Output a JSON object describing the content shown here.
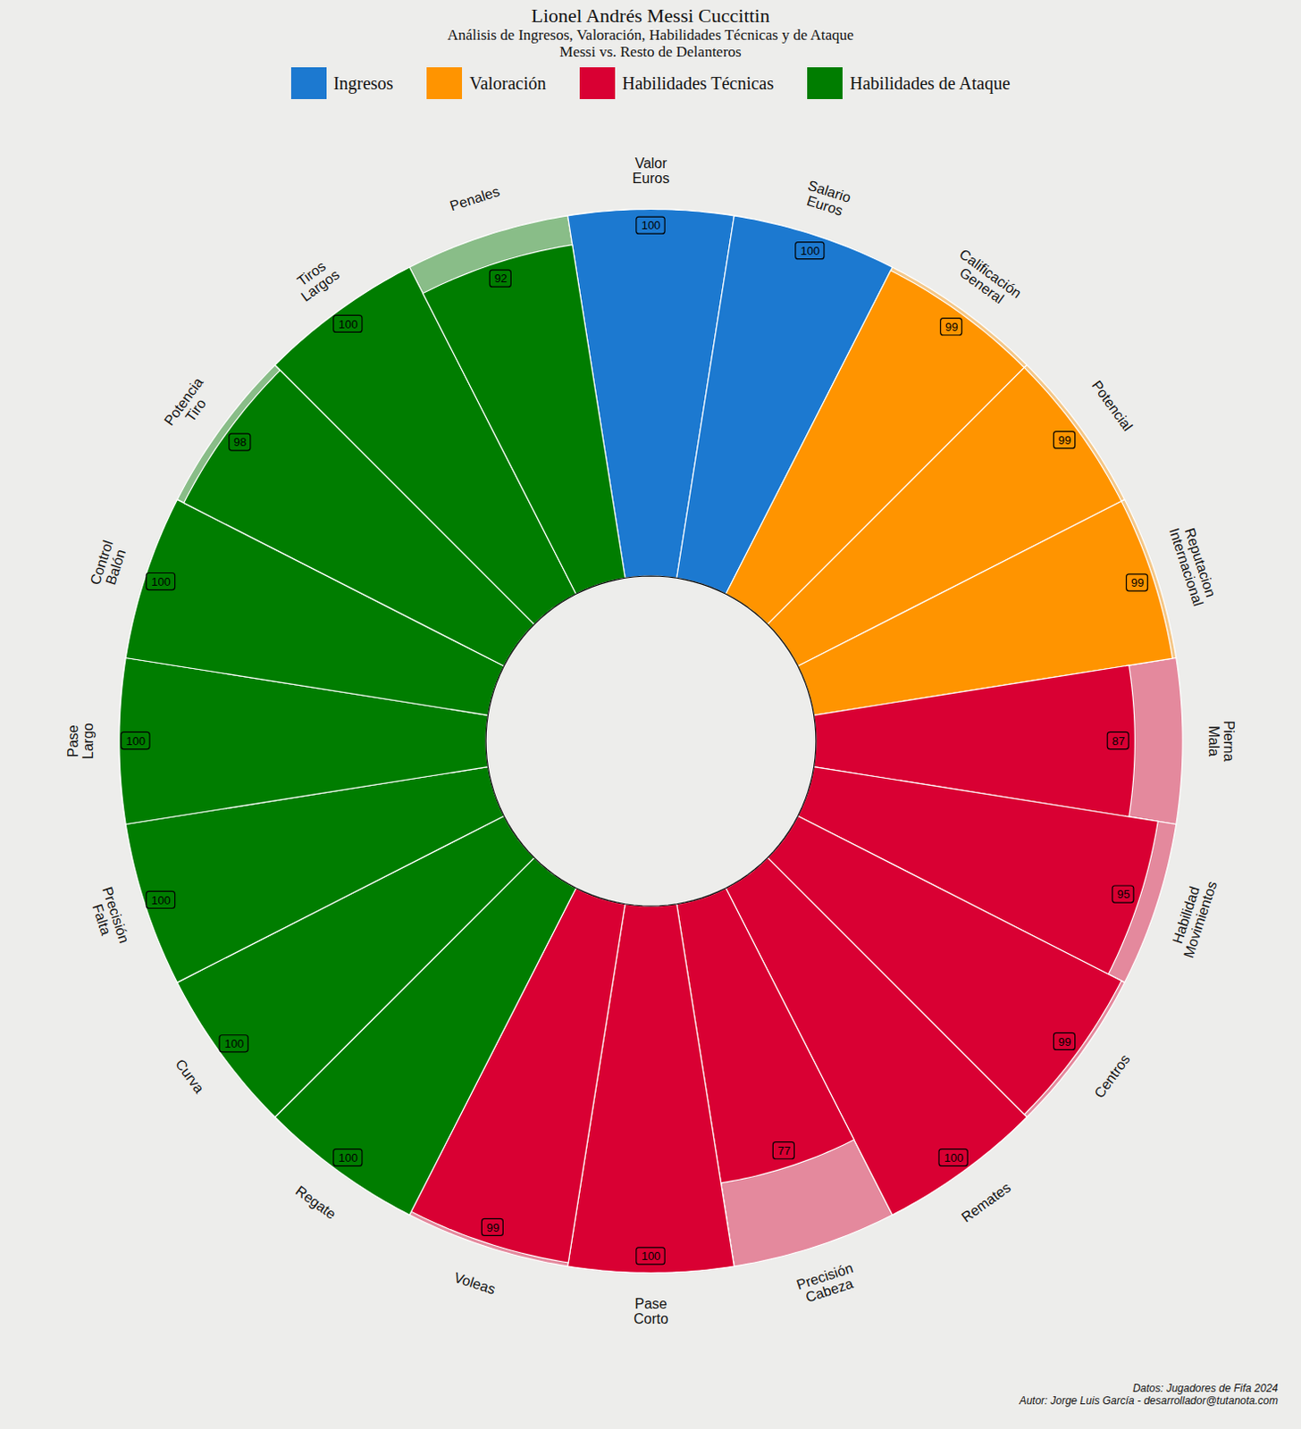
{
  "chart_data": {
    "type": "radial_bar",
    "title": "Lionel Andrés Messi Cuccittin",
    "subtitle": [
      "Análisis de Ingresos, Valoración, Habilidades Técnicas y de Ataque",
      "Messi vs. Resto de Delanteros"
    ],
    "caption": [
      "Datos: Jugadores de Fifa 2024",
      "Autor: Jorge Luis García - desarrollador@tutanota.com"
    ],
    "categories": [
      "Valor\nEuros",
      "Salario\nEuros",
      "Calificación\nGeneral",
      "Potencial",
      "Reputacion\nInternacional",
      "Pierna\nMala",
      "Habilidad\nMovimientos",
      "Centros",
      "Remates",
      "Precisión\nCabeza",
      "Pase\nCorto",
      "Voleas",
      "Regate",
      "Curva",
      "Precisión\nFalta",
      "Pase\nLargo",
      "Control\nBalón",
      "Potencia\nTiro",
      "Tiros\nLargos",
      "Penales"
    ],
    "series": [
      {
        "name": "Ingresos",
        "color": "#1c79d0",
        "values": [
          100,
          100,
          null,
          null,
          null,
          null,
          null,
          null,
          null,
          null,
          null,
          null,
          null,
          null,
          null,
          null,
          null,
          null,
          null,
          null
        ]
      },
      {
        "name": "Valoración",
        "color": "#ff9400",
        "values": [
          null,
          null,
          99,
          99,
          99,
          null,
          null,
          null,
          null,
          null,
          null,
          null,
          null,
          null,
          null,
          null,
          null,
          null,
          null,
          null
        ]
      },
      {
        "name": "Habilidades Técnicas",
        "color": "#d90033",
        "values": [
          null,
          null,
          null,
          null,
          null,
          87,
          95,
          99,
          100,
          77,
          100,
          99,
          null,
          null,
          null,
          null,
          null,
          null,
          null,
          null
        ]
      },
      {
        "name": "Habilidades de Ataque",
        "color": "#007d00",
        "values": [
          null,
          null,
          null,
          null,
          null,
          null,
          null,
          null,
          null,
          null,
          null,
          null,
          100,
          100,
          100,
          100,
          100,
          98,
          100,
          92
        ]
      }
    ],
    "ylim": [
      0,
      100
    ],
    "data_labels": true,
    "tick_labels": false,
    "legend": "top"
  }
}
